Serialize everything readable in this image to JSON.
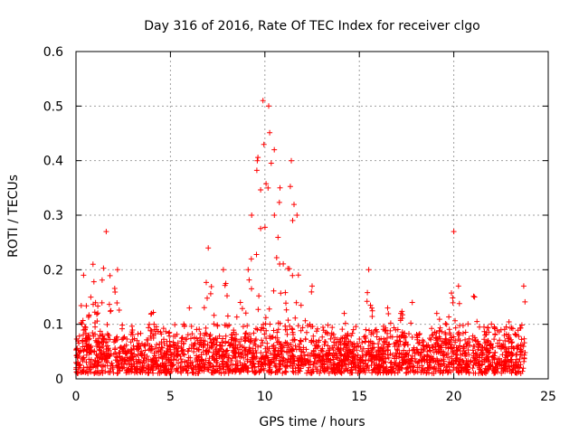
{
  "chart_data": {
    "type": "scatter",
    "title": "Day 316 of 2016, Rate Of TEC Index for receiver clgo",
    "xlabel": "GPS time / hours",
    "ylabel": "ROTI / TECUs",
    "xlim": [
      0,
      25
    ],
    "ylim": [
      0,
      0.6
    ],
    "x_ticks": [
      0,
      5,
      10,
      15,
      20,
      25
    ],
    "x_tick_labels": [
      "0",
      "5",
      "10",
      "15",
      "20",
      "25"
    ],
    "y_ticks": [
      0,
      0.1,
      0.2,
      0.3,
      0.4,
      0.5,
      0.6
    ],
    "y_tick_labels": [
      "0",
      "0.1",
      "0.2",
      "0.3",
      "0.4",
      "0.5",
      "0.6"
    ],
    "grid": true,
    "marker": "+",
    "color": "#ff0000",
    "series": [
      {
        "name": "ROTI",
        "x_range": [
          0,
          23.8
        ],
        "baseline_range": [
          0.01,
          0.08
        ],
        "peaks": [
          {
            "x": 0.4,
            "y": 0.19
          },
          {
            "x": 0.9,
            "y": 0.21
          },
          {
            "x": 1.6,
            "y": 0.27
          },
          {
            "x": 2.2,
            "y": 0.2
          },
          {
            "x": 4.0,
            "y": 0.12
          },
          {
            "x": 6.0,
            "y": 0.13
          },
          {
            "x": 7.0,
            "y": 0.24
          },
          {
            "x": 7.8,
            "y": 0.2
          },
          {
            "x": 8.7,
            "y": 0.14
          },
          {
            "x": 9.3,
            "y": 0.3
          },
          {
            "x": 9.6,
            "y": 0.4
          },
          {
            "x": 9.9,
            "y": 0.51
          },
          {
            "x": 10.2,
            "y": 0.5
          },
          {
            "x": 10.5,
            "y": 0.42
          },
          {
            "x": 10.8,
            "y": 0.35
          },
          {
            "x": 11.4,
            "y": 0.4
          },
          {
            "x": 11.7,
            "y": 0.3
          },
          {
            "x": 12.5,
            "y": 0.17
          },
          {
            "x": 14.2,
            "y": 0.12
          },
          {
            "x": 15.5,
            "y": 0.2
          },
          {
            "x": 16.5,
            "y": 0.13
          },
          {
            "x": 17.2,
            "y": 0.12
          },
          {
            "x": 17.8,
            "y": 0.14
          },
          {
            "x": 19.1,
            "y": 0.12
          },
          {
            "x": 20.0,
            "y": 0.27
          },
          {
            "x": 21.1,
            "y": 0.15
          },
          {
            "x": 22.5,
            "y": 0.09
          },
          {
            "x": 23.7,
            "y": 0.17
          }
        ]
      }
    ]
  }
}
